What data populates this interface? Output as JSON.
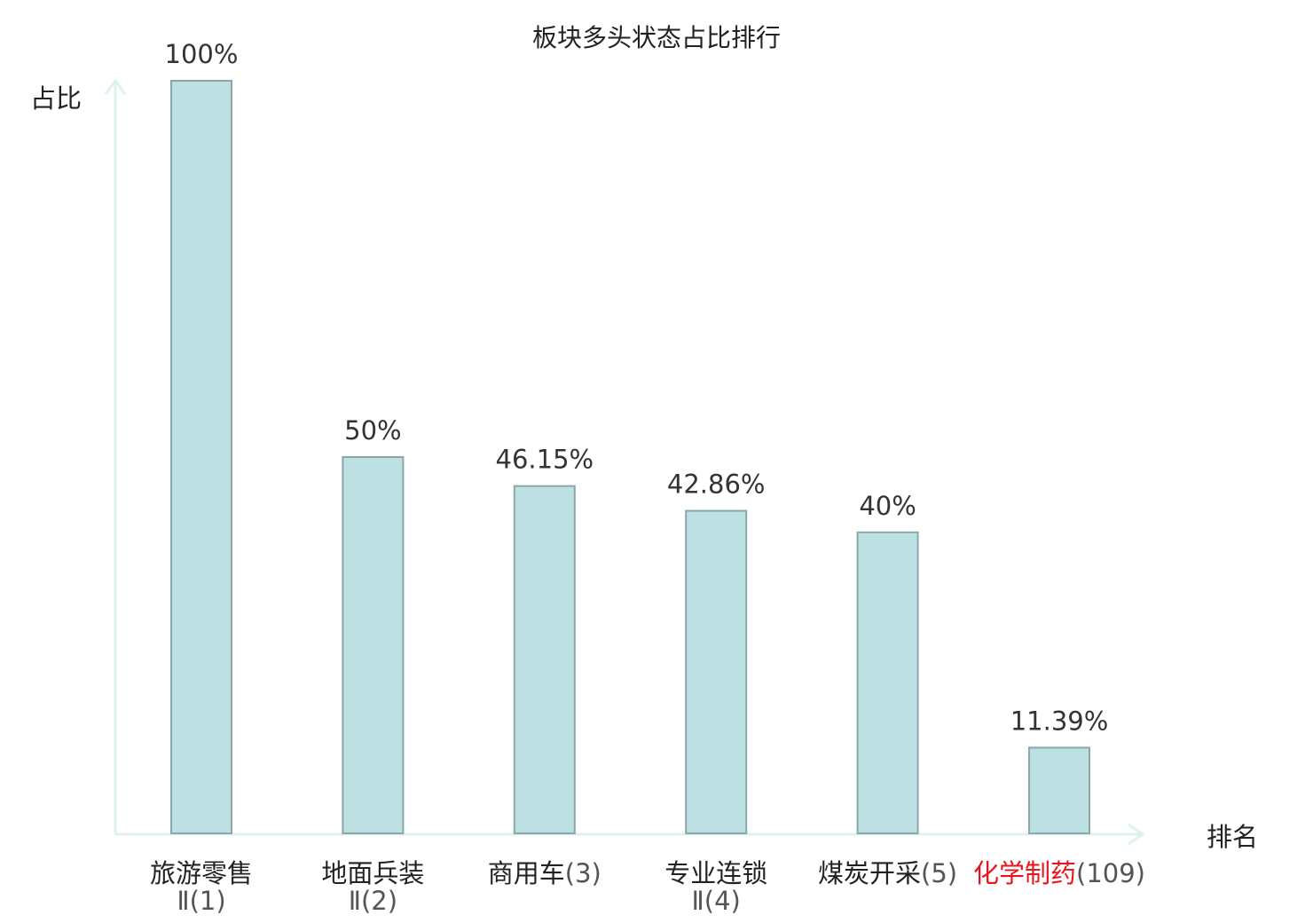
{
  "chart_data": {
    "type": "bar",
    "title": "板块多头状态占比排行",
    "ylabel": "占比",
    "xlabel": "排名",
    "ylim": [
      0,
      100
    ],
    "grid": false,
    "categories": [
      {
        "name": "旅游零售",
        "rank_text": "Ⅱ(1)",
        "layout": "two-line",
        "highlight": false
      },
      {
        "name": "地面兵装",
        "rank_text": "Ⅱ(2)",
        "layout": "two-line",
        "highlight": false
      },
      {
        "name": "商用车",
        "rank_text": "(3)",
        "layout": "inline",
        "highlight": false
      },
      {
        "name": "专业连锁",
        "rank_text": "Ⅱ(4)",
        "layout": "two-line",
        "highlight": false
      },
      {
        "name": "煤炭开采",
        "rank_text": "(5)",
        "layout": "inline",
        "highlight": false
      },
      {
        "name": "化学制药",
        "rank_text": "(109)",
        "layout": "inline",
        "highlight": true
      }
    ],
    "values": [
      100,
      50,
      46.15,
      42.86,
      40,
      11.39
    ],
    "value_labels": [
      "100%",
      "50%",
      "46.15%",
      "42.86%",
      "40%",
      "11.39%"
    ]
  },
  "colors": {
    "bar_fill": "#bde0e3",
    "bar_stroke": "#8aa8ab",
    "axis": "#ddf1ee",
    "highlight": "#e8141e",
    "text": "#222222"
  }
}
